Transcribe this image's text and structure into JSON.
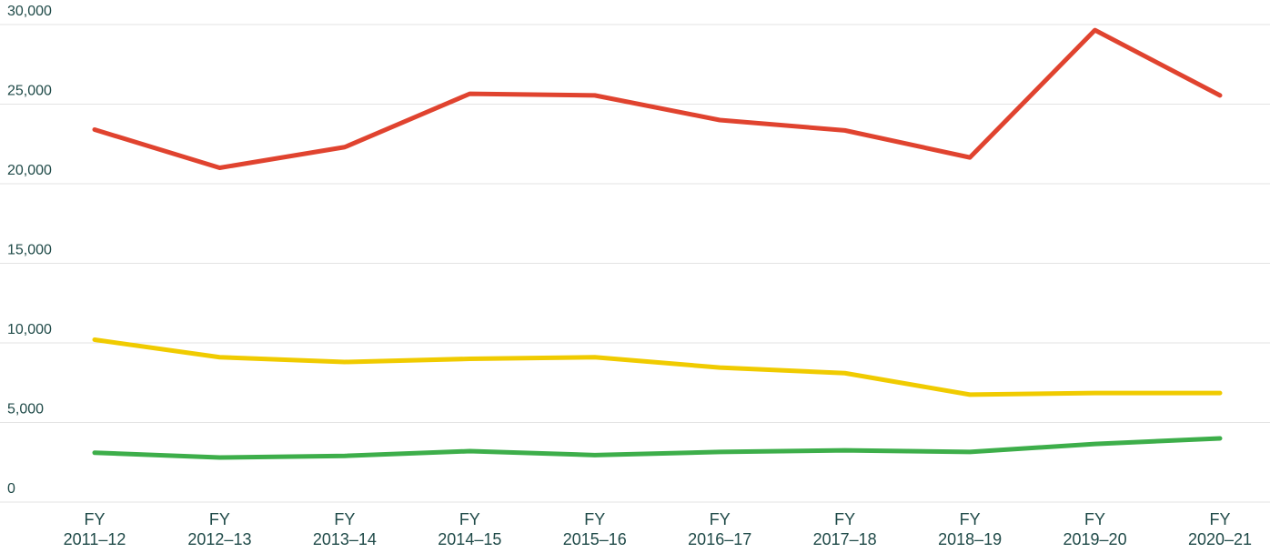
{
  "chart_data": {
    "type": "line",
    "categories": [
      "FY\n2011–12",
      "FY\n2012–13",
      "FY\n2013–14",
      "FY\n2014–15",
      "FY\n2015–16",
      "FY\n2016–17",
      "FY\n2017–18",
      "FY\n2018–19",
      "FY\n2019–20",
      "FY\n2020–21"
    ],
    "series": [
      {
        "color": "#e0432f",
        "values": [
          23400,
          21000,
          22300,
          25650,
          25550,
          24000,
          23350,
          21650,
          29650,
          25550
        ]
      },
      {
        "color": "#f0cb00",
        "values": [
          10200,
          9100,
          8800,
          9000,
          9100,
          8450,
          8100,
          6750,
          6850,
          6850
        ]
      },
      {
        "color": "#3dae4a",
        "values": [
          3100,
          2800,
          2900,
          3200,
          2950,
          3150,
          3250,
          3150,
          3650,
          4000
        ]
      }
    ],
    "ylim": [
      0,
      30000
    ],
    "yticks": [
      0,
      {
        "value": 5000,
        "label": "5,000"
      },
      {
        "value": 10000,
        "label": "10,000"
      },
      {
        "value": 15000,
        "label": "15,000"
      },
      {
        "value": 20000,
        "label": "20,000"
      },
      {
        "value": 25000,
        "label": "25,000"
      },
      {
        "value": 30000,
        "label": "30,000"
      }
    ],
    "grid": true
  }
}
